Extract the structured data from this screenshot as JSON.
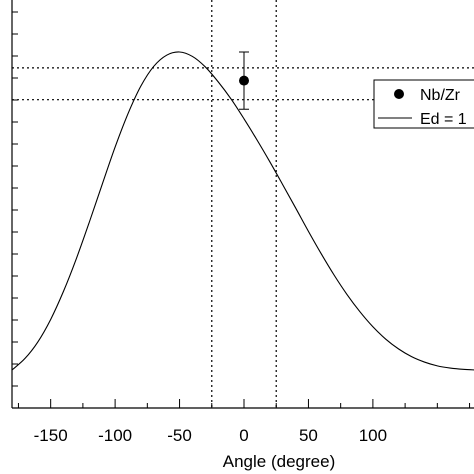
{
  "chart_data": {
    "type": "line",
    "xlabel": "Angle (degree)",
    "ylabel": "",
    "xlim": [
      -180,
      180
    ],
    "x_ticks": [
      -150,
      -100,
      -50,
      0,
      50,
      100
    ],
    "x_tick_labels": [
      "-150",
      "-100",
      "-50",
      "0",
      "50",
      "100"
    ],
    "series": [
      {
        "name": "Ed = 1",
        "kind": "line",
        "x": [
          -180,
          -170,
          -160,
          -150,
          -140,
          -130,
          -120,
          -110,
          -100,
          -90,
          -80,
          -70,
          -60,
          -50,
          -40,
          -30,
          -20,
          -10,
          0,
          10,
          20,
          30,
          40,
          50,
          60,
          70,
          80,
          90,
          100,
          110,
          120,
          130,
          140,
          150,
          160,
          170,
          180
        ],
        "y": [
          0.0,
          0.036,
          0.088,
          0.159,
          0.248,
          0.351,
          0.465,
          0.584,
          0.701,
          0.806,
          0.893,
          0.955,
          0.99,
          1.0,
          0.986,
          0.953,
          0.906,
          0.852,
          0.79,
          0.724,
          0.655,
          0.583,
          0.51,
          0.436,
          0.365,
          0.298,
          0.237,
          0.183,
          0.136,
          0.097,
          0.066,
          0.042,
          0.025,
          0.013,
          0.006,
          0.002,
          0.0
        ]
      },
      {
        "name": "Nb/Zr",
        "kind": "point",
        "x": [
          0
        ],
        "y": [
          0.91
        ],
        "yerr": [
          0.09
        ]
      }
    ],
    "reference_lines": {
      "vertical_x": [
        -25,
        25
      ],
      "horizontal_y": [
        0.95,
        0.85
      ]
    },
    "legend": {
      "position": "top-right",
      "entries": [
        "Nb/Zr",
        "Ed = 1"
      ]
    },
    "grid": false,
    "colors": {
      "line": "#000000",
      "marker": "#000000",
      "axis": "#000000"
    }
  }
}
